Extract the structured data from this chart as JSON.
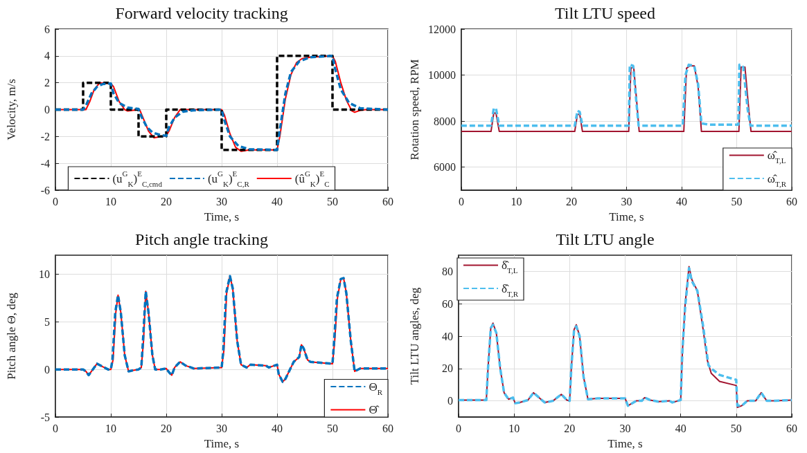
{
  "chart_data": [
    {
      "type": "line",
      "title": "Forward velocity tracking",
      "xlabel": "Time, s",
      "ylabel": "Velocity, m/s",
      "xlim": [
        0,
        60
      ],
      "xticks": [
        0,
        10,
        20,
        30,
        40,
        50,
        60
      ],
      "ylim": [
        -6,
        6
      ],
      "yticks": [
        -6,
        -4,
        -2,
        0,
        2,
        4,
        6
      ],
      "grid": true,
      "legend": "bottom",
      "marker": "none",
      "series": [
        {
          "name": "(u$^{G}$$_{K}$)$^{E}$$_{C,cmd}$",
          "color": "#000000",
          "line_style": "dashed",
          "x": [
            0,
            5,
            5,
            10,
            10,
            15,
            15,
            20,
            20,
            30,
            30,
            40,
            40,
            50,
            50,
            60
          ],
          "values": [
            0,
            0,
            2,
            2,
            0,
            0,
            -2,
            -2,
            0,
            0,
            -3,
            -3,
            4,
            4,
            0,
            0
          ]
        },
        {
          "name": "(u$^{G}$$_{K}$)$^{E}$$_{C,R}$",
          "color": "#0072bd",
          "line_style": "dashed",
          "x": [
            0,
            5,
            5.5,
            6.5,
            7.5,
            8.5,
            10,
            10.5,
            11.5,
            13,
            15,
            15.5,
            16.5,
            17.5,
            19,
            20,
            20.5,
            21.5,
            23,
            25,
            30,
            30.5,
            31.5,
            33,
            35,
            40,
            40.5,
            41.5,
            42.5,
            44,
            46,
            50,
            50.5,
            51.5,
            53,
            55,
            60
          ],
          "values": [
            0,
            0,
            0.3,
            1.2,
            1.7,
            1.9,
            1.95,
            1.2,
            0.5,
            0.15,
            0.05,
            -0.5,
            -1.3,
            -1.7,
            -1.9,
            -1.95,
            -1.3,
            -0.6,
            -0.15,
            -0.05,
            0,
            -0.8,
            -2,
            -2.7,
            -2.95,
            -3,
            -1.5,
            1.2,
            2.8,
            3.6,
            3.9,
            4,
            3,
            1.5,
            0.5,
            0.1,
            0
          ]
        },
        {
          "name": "(û$^{G}$$_{K}$)$^{E}$$_{C}$",
          "color": "#ff0000",
          "line_style": "solid",
          "x": [
            0,
            5.5,
            6.2,
            7,
            8,
            10,
            10.5,
            11.5,
            12.5,
            13,
            14,
            15.2,
            15.8,
            16.8,
            17.8,
            18.5,
            20,
            20.5,
            21.5,
            22.5,
            23.5,
            30,
            30.5,
            31.5,
            32.5,
            33.5,
            35,
            40,
            40.5,
            41.5,
            42.5,
            43.5,
            44.5,
            46,
            50,
            50.5,
            51.5,
            52.5,
            53.5,
            54,
            55,
            56,
            60
          ],
          "values": [
            0,
            0,
            0.6,
            1.5,
            2,
            1.95,
            1.7,
            0.6,
            0,
            -0.1,
            -0.05,
            0,
            -0.6,
            -1.6,
            -2.1,
            -2.05,
            -1.95,
            -1.6,
            -0.6,
            0,
            0,
            0,
            -0.4,
            -1.8,
            -2.8,
            -3.1,
            -3,
            -3,
            -2,
            0.8,
            2.6,
            3.5,
            3.8,
            3.9,
            4,
            3.6,
            2,
            0.7,
            -0.1,
            -0.2,
            -0.05,
            0,
            0
          ]
        }
      ]
    },
    {
      "type": "line",
      "title": "Tilt LTU speed",
      "xlabel": "Time, s",
      "ylabel": "Rotation speed, RPM",
      "xlim": [
        0,
        60
      ],
      "xticks": [
        0,
        10,
        20,
        30,
        40,
        50,
        60
      ],
      "ylim": [
        5000,
        12000
      ],
      "yticks": [
        6000,
        8000,
        10000,
        12000
      ],
      "grid": true,
      "legend": "bottom right",
      "marker": "none",
      "series": [
        {
          "name": "ω̂$_{T,L}$",
          "color": "#a2142f",
          "line_style": "solid",
          "x": [
            0,
            5.4,
            5.9,
            6.3,
            6.9,
            20.6,
            21.1,
            21.5,
            22,
            30.4,
            30.8,
            31.3,
            31.8,
            32.3,
            40.4,
            40.9,
            41.5,
            42.3,
            43,
            43.6,
            50.4,
            50.8,
            51.5,
            52.2,
            52.6,
            60
          ],
          "values": [
            7550,
            7550,
            8350,
            8350,
            7550,
            7550,
            8300,
            8300,
            7550,
            7550,
            10300,
            10350,
            9000,
            7550,
            7550,
            10300,
            10400,
            10400,
            9500,
            7550,
            7550,
            10350,
            10350,
            8500,
            7550,
            7550
          ]
        },
        {
          "name": "ω̂$_{T,R}$",
          "color": "#4dbeee",
          "line_style": "dashed",
          "x": [
            0,
            5.4,
            5.9,
            6.3,
            6.9,
            20.6,
            21.1,
            21.5,
            22,
            30.4,
            30.6,
            31.2,
            31.8,
            32.2,
            40.2,
            40.7,
            41.3,
            42.3,
            43,
            43.6,
            45,
            50.3,
            50.5,
            51.2,
            52,
            52.5,
            60
          ],
          "values": [
            7800,
            7800,
            8550,
            8550,
            7800,
            7800,
            8450,
            8400,
            7800,
            7800,
            10450,
            10400,
            8800,
            7800,
            7800,
            10000,
            10450,
            10400,
            9600,
            7900,
            7850,
            7850,
            10450,
            10350,
            8500,
            7800,
            7800
          ]
        }
      ]
    },
    {
      "type": "line",
      "title": "Pitch angle tracking",
      "xlabel": "Time, s",
      "ylabel": "Pitch angle Θ, deg",
      "xlim": [
        0,
        60
      ],
      "xticks": [
        0,
        10,
        20,
        30,
        40,
        50,
        60
      ],
      "ylim": [
        -5,
        12
      ],
      "yticks": [
        -5,
        0,
        5,
        10
      ],
      "grid": true,
      "legend": "bottom right",
      "marker": "none",
      "series": [
        {
          "name": "Θ$_{R}$",
          "color": "#0072bd",
          "line_style": "dashed",
          "x": [
            0,
            5,
            5.5,
            6,
            6.5,
            7.5,
            8.5,
            9.5,
            10,
            10.3,
            10.8,
            11.3,
            11.8,
            12.5,
            13.2,
            14,
            15,
            15.5,
            15.8,
            16.3,
            16.8,
            17.5,
            18,
            19,
            20,
            20.5,
            21,
            21.5,
            22.5,
            23.5,
            25,
            30,
            30.3,
            30.8,
            31.5,
            32,
            32.8,
            33.5,
            34.5,
            35.2,
            38,
            38.5,
            40,
            40.3,
            41,
            41.5,
            43,
            44,
            44.4,
            44.8,
            45.5,
            46,
            50,
            50.3,
            50.8,
            51.5,
            52,
            52.5,
            53.3,
            54,
            55,
            60
          ],
          "values": [
            0,
            0,
            -0.2,
            -0.6,
            -0.2,
            0.6,
            0.3,
            0,
            0,
            1,
            6,
            7.8,
            6,
            1.5,
            -0.2,
            -0.1,
            0,
            0.2,
            3,
            8.2,
            6,
            1.5,
            0,
            0,
            0.1,
            -0.3,
            -0.6,
            0.2,
            0.8,
            0.4,
            0.1,
            0.2,
            2,
            8,
            9.8,
            8.5,
            3,
            0.5,
            0.2,
            0.5,
            0.4,
            0.2,
            0.5,
            -0.5,
            -1.3,
            -1,
            0.8,
            1.3,
            2.6,
            2.2,
            1,
            0.8,
            0.6,
            3,
            7.5,
            9.5,
            9.6,
            8,
            3,
            -0.2,
            0.1,
            0.1
          ]
        },
        {
          "name": "Θ̂",
          "color": "#ff0000",
          "line_style": "solid",
          "x": [
            0,
            5,
            5.5,
            6,
            6.5,
            7.5,
            8.5,
            9.5,
            10,
            10.4,
            10.9,
            11.3,
            11.8,
            12.5,
            13.2,
            14,
            15,
            15.5,
            15.9,
            16.3,
            16.8,
            17.5,
            18,
            19,
            20,
            20.5,
            21,
            21.5,
            22.5,
            23.5,
            25,
            30,
            30.4,
            30.9,
            31.5,
            32,
            32.8,
            33.5,
            34.5,
            35.2,
            38,
            38.5,
            40,
            40.3,
            41,
            41.5,
            43,
            44,
            44.4,
            44.8,
            45.5,
            46,
            50,
            50.4,
            50.9,
            51.5,
            52,
            52.5,
            53.3,
            54,
            55,
            60
          ],
          "values": [
            0,
            0,
            -0.2,
            -0.6,
            -0.2,
            0.6,
            0.3,
            0,
            0,
            1,
            6,
            7.8,
            6,
            1.5,
            -0.2,
            -0.1,
            0,
            0.2,
            3,
            8.2,
            6,
            1.5,
            0,
            0,
            0.1,
            -0.3,
            -0.6,
            0.2,
            0.8,
            0.4,
            0.1,
            0.2,
            2,
            8,
            9.8,
            8.5,
            3,
            0.5,
            0.2,
            0.5,
            0.4,
            0.2,
            0.5,
            -0.5,
            -1.3,
            -1,
            0.8,
            1.3,
            2.6,
            2.2,
            1,
            0.8,
            0.6,
            3,
            7.5,
            9.5,
            9.6,
            8,
            3,
            -0.2,
            0.1,
            0.1
          ]
        }
      ]
    },
    {
      "type": "line",
      "title": "Tilt LTU angle",
      "xlabel": "Time, s",
      "ylabel": "Tilt LTU angles, deg",
      "xlim": [
        0,
        60
      ],
      "xticks": [
        0,
        10,
        20,
        30,
        40,
        50,
        60
      ],
      "ylim": [
        -10,
        90
      ],
      "yticks": [
        0,
        20,
        40,
        60,
        80
      ],
      "grid": true,
      "legend": "top left",
      "marker": "none",
      "series": [
        {
          "name": "δ̂$_{T,L}$",
          "color": "#a2142f",
          "line_style": "solid",
          "x": [
            0,
            5,
            5.3,
            5.8,
            6.2,
            6.8,
            7.5,
            8.2,
            9,
            9.8,
            10.2,
            11,
            12.5,
            13.5,
            14.5,
            15.5,
            17,
            18.5,
            19.5,
            20,
            20.3,
            20.8,
            21.2,
            21.8,
            22.5,
            23.3,
            25,
            30,
            30.5,
            31.5,
            32,
            33,
            33.5,
            34.5,
            36,
            38,
            38.5,
            39.5,
            40,
            40.3,
            40.8,
            41.5,
            42,
            43,
            44,
            44.8,
            45.5,
            47,
            50,
            50.2,
            51,
            52,
            53.5,
            54.5,
            55.5,
            57,
            60
          ],
          "values": [
            0.5,
            0.5,
            20,
            45,
            48,
            42,
            20,
            5,
            1,
            2,
            -1.5,
            -1,
            0.5,
            5,
            2,
            -1,
            0,
            4,
            0.5,
            0,
            20,
            44,
            47,
            40,
            15,
            1,
            1.5,
            1.5,
            -3,
            -1,
            0,
            0,
            2,
            0.5,
            -0.5,
            0,
            -1,
            0,
            0.5,
            30,
            60,
            83,
            75,
            68,
            45,
            25,
            17,
            12,
            9.5,
            -4,
            -3,
            0,
            0,
            5,
            0,
            0,
            0.5
          ]
        },
        {
          "name": "δ̂$_{T,R}$",
          "color": "#4dbeee",
          "line_style": "dashed",
          "x": [
            0,
            5,
            5.3,
            5.8,
            6.2,
            6.8,
            7.5,
            8.2,
            9,
            9.8,
            10.2,
            11,
            12.5,
            13.5,
            14.5,
            15.5,
            17,
            18.5,
            19.5,
            20,
            20.3,
            20.8,
            21.2,
            21.8,
            22.5,
            23.3,
            25,
            30,
            30.5,
            31.5,
            32,
            33,
            33.5,
            34.5,
            36,
            38,
            38.5,
            39.5,
            40,
            40.3,
            40.8,
            41.5,
            42,
            43,
            44,
            45,
            45.5,
            47,
            49,
            50,
            50.2,
            51,
            52,
            53.5,
            54.5,
            55.5,
            57,
            60
          ],
          "values": [
            0.5,
            0.5,
            20,
            45,
            47,
            42,
            20,
            5,
            1,
            2,
            -1.5,
            -1,
            0.5,
            5,
            2,
            -1,
            0,
            4,
            0.5,
            0,
            20,
            44,
            46,
            40,
            15,
            1,
            1.5,
            1.5,
            -3,
            -1,
            0,
            0,
            2,
            0.5,
            -0.5,
            0,
            -1,
            0,
            0.5,
            30,
            58,
            82,
            74,
            68,
            47,
            22,
            20,
            16,
            14,
            13,
            -3,
            -3,
            0,
            0,
            5,
            0,
            0,
            0.5
          ]
        }
      ]
    }
  ]
}
